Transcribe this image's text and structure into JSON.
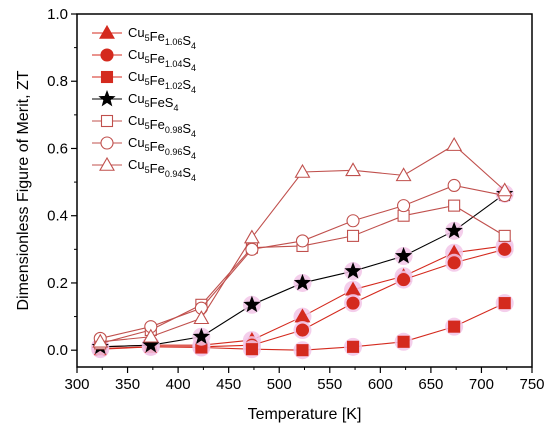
{
  "chart_data": {
    "type": "line",
    "xlabel": "Temperature [K]",
    "ylabel": "Dimensionless Figure of Merit, ZT",
    "xlim": [
      300,
      750
    ],
    "ylim": [
      -0.05,
      1.0
    ],
    "xticks": [
      300,
      350,
      400,
      450,
      500,
      550,
      600,
      650,
      700,
      750
    ],
    "yticks": [
      0.0,
      0.2,
      0.4,
      0.6,
      0.8,
      1.0
    ],
    "xtick_labels": [
      "300",
      "350",
      "400",
      "450",
      "500",
      "550",
      "600",
      "650",
      "700",
      "750"
    ],
    "ytick_labels": [
      "0.0",
      "0.2",
      "0.4",
      "0.6",
      "0.8",
      "1.0"
    ],
    "grid": false,
    "legend_position": "top-left",
    "x": [
      323,
      373,
      423,
      473,
      523,
      573,
      623,
      673,
      723
    ],
    "series": [
      {
        "name": "Cu5Fe1.06S4",
        "label_parts": [
          [
            "Cu",
            false
          ],
          [
            "5",
            true
          ],
          [
            "Fe",
            false
          ],
          [
            "1.06",
            true
          ],
          [
            "S",
            false
          ],
          [
            "4",
            true
          ]
        ],
        "marker": "triangle",
        "filled": true,
        "color": "#d42a1e",
        "values": [
          0.01,
          0.015,
          0.015,
          0.03,
          0.1,
          0.18,
          0.22,
          0.29,
          0.31
        ]
      },
      {
        "name": "Cu5Fe1.04S4",
        "label_parts": [
          [
            "Cu",
            false
          ],
          [
            "5",
            true
          ],
          [
            "Fe",
            false
          ],
          [
            "1.04",
            true
          ],
          [
            "S",
            false
          ],
          [
            "4",
            true
          ]
        ],
        "marker": "circle",
        "filled": true,
        "color": "#d42a1e",
        "values": [
          0.005,
          0.01,
          0.01,
          0.015,
          0.06,
          0.14,
          0.21,
          0.26,
          0.3
        ]
      },
      {
        "name": "Cu5Fe1.02S4",
        "label_parts": [
          [
            "Cu",
            false
          ],
          [
            "5",
            true
          ],
          [
            "Fe",
            false
          ],
          [
            "1.02",
            true
          ],
          [
            "S",
            false
          ],
          [
            "4",
            true
          ]
        ],
        "marker": "square",
        "filled": true,
        "color": "#d42a1e",
        "values": [
          0.003,
          0.01,
          0.008,
          0.003,
          0.0,
          0.01,
          0.025,
          0.07,
          0.14
        ]
      },
      {
        "name": "Cu5FeS4",
        "label_parts": [
          [
            "Cu",
            false
          ],
          [
            "5",
            true
          ],
          [
            "FeS",
            false
          ],
          [
            "4",
            true
          ]
        ],
        "marker": "star",
        "filled": true,
        "color": "#000000",
        "values": [
          0.01,
          0.015,
          0.04,
          0.135,
          0.2,
          0.235,
          0.28,
          0.355,
          0.465
        ]
      },
      {
        "name": "Cu5Fe0.98S4",
        "label_parts": [
          [
            "Cu",
            false
          ],
          [
            "5",
            true
          ],
          [
            "Fe",
            false
          ],
          [
            "0.98",
            true
          ],
          [
            "S",
            false
          ],
          [
            "4",
            true
          ]
        ],
        "marker": "square",
        "filled": false,
        "color": "#c0504d",
        "values": [
          0.02,
          0.06,
          0.135,
          0.305,
          0.31,
          0.34,
          0.4,
          0.43,
          0.34
        ]
      },
      {
        "name": "Cu5Fe0.96S4",
        "label_parts": [
          [
            "Cu",
            false
          ],
          [
            "5",
            true
          ],
          [
            "Fe",
            false
          ],
          [
            "0.96",
            true
          ],
          [
            "S",
            false
          ],
          [
            "4",
            true
          ]
        ],
        "marker": "circle",
        "filled": false,
        "color": "#c0504d",
        "values": [
          0.035,
          0.07,
          0.125,
          0.3,
          0.325,
          0.385,
          0.43,
          0.49,
          0.46
        ]
      },
      {
        "name": "Cu5Fe0.94S4",
        "label_parts": [
          [
            "Cu",
            false
          ],
          [
            "5",
            true
          ],
          [
            "Fe",
            false
          ],
          [
            "0.94",
            true
          ],
          [
            "S",
            false
          ],
          [
            "4",
            true
          ]
        ],
        "marker": "triangle",
        "filled": false,
        "color": "#c0504d",
        "values": [
          0.025,
          0.04,
          0.095,
          0.335,
          0.53,
          0.535,
          0.52,
          0.61,
          0.475
        ]
      }
    ]
  }
}
